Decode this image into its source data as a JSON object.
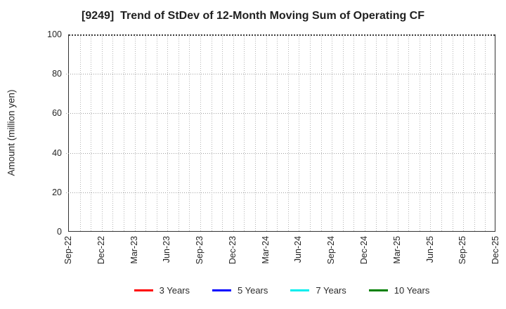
{
  "figure": {
    "background": "#ffffff"
  },
  "chart_data": {
    "type": "line",
    "title": "[9249]  Trend of StDev of 12-Month Moving Sum of Operating CF",
    "xlabel": "",
    "ylabel": "Amount (million yen)",
    "ylim": [
      0,
      100
    ],
    "yticks": [
      0,
      20,
      40,
      60,
      80,
      100
    ],
    "x_tick_labels": [
      "Sep-22",
      "Dec-22",
      "Mar-23",
      "Jun-23",
      "Sep-23",
      "Dec-23",
      "Mar-24",
      "Jun-24",
      "Sep-24",
      "Dec-24",
      "Mar-25",
      "Jun-25",
      "Sep-25",
      "Dec-25"
    ],
    "months_per_labeled_tick": 3,
    "total_month_intervals": 39,
    "grid": {
      "style": "dotted",
      "color": "#b4b4b4",
      "vertical_every": "1 month",
      "horizontal_every": 20
    },
    "legend_position": "bottom-center",
    "series": [
      {
        "name": "3 Years",
        "color": "#ff0000",
        "values": []
      },
      {
        "name": "5 Years",
        "color": "#0000ff",
        "values": []
      },
      {
        "name": "7 Years",
        "color": "#00eeee",
        "values": []
      },
      {
        "name": "10 Years",
        "color": "#008000",
        "values": []
      }
    ],
    "plotted_data_visible": false
  },
  "colors": {
    "spine": "#333333",
    "tick_label": "#262626",
    "title": "#1f1f1f",
    "legend_text": "#2b2b2b"
  }
}
